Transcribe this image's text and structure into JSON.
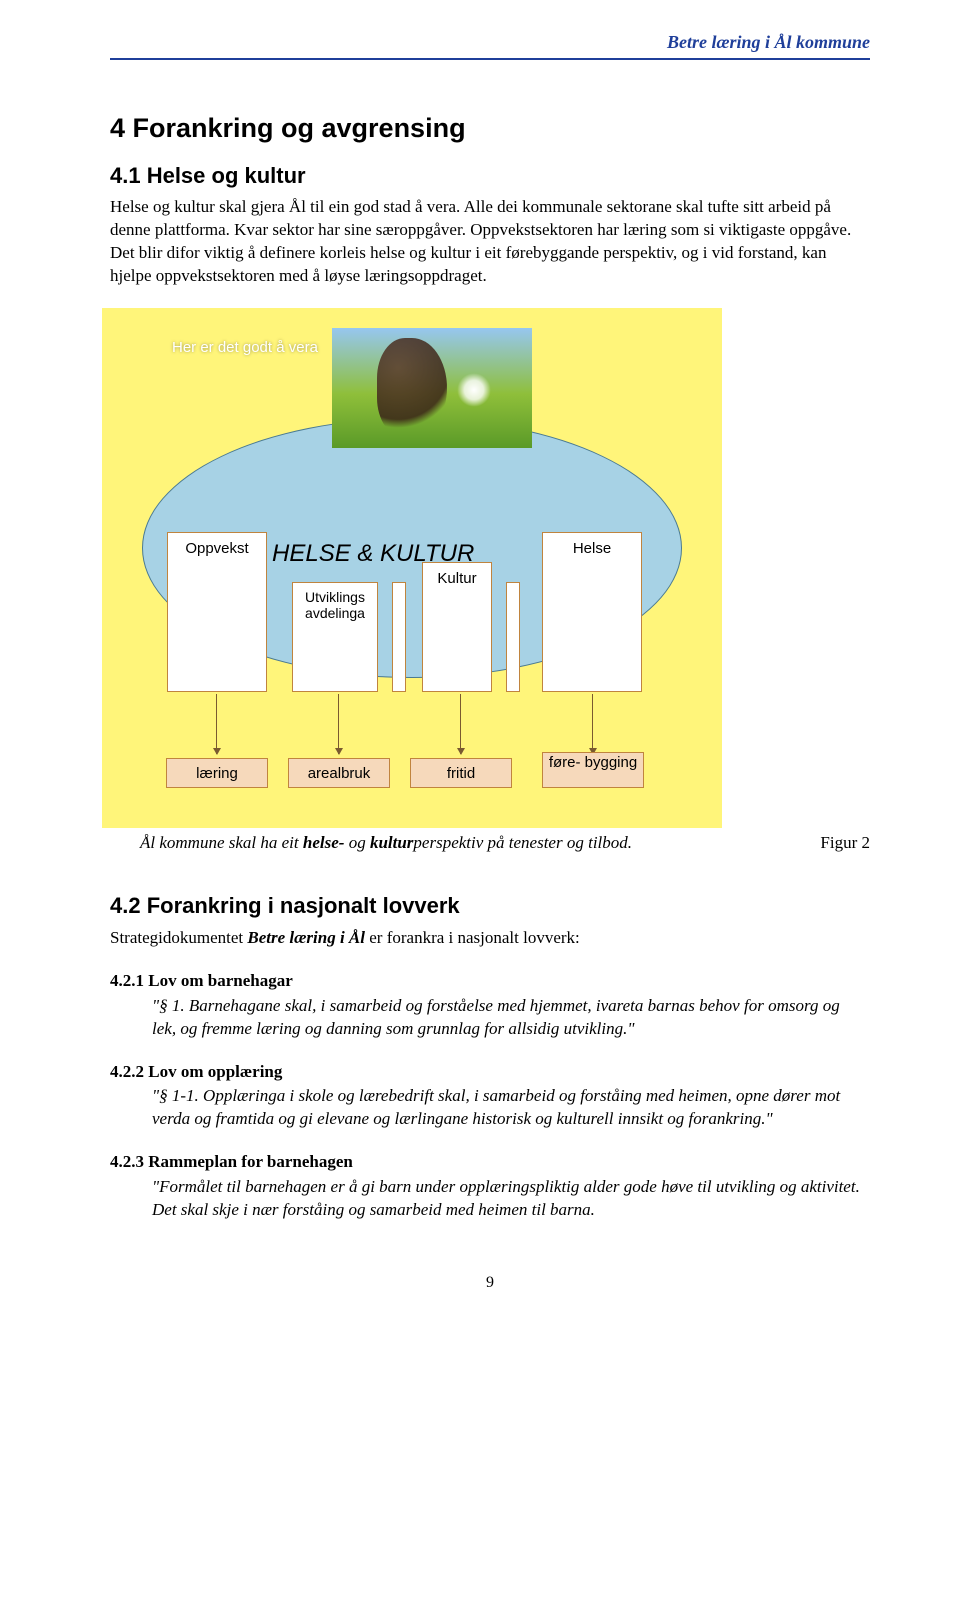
{
  "header": {
    "running_title": "Betre læring i Ål kommune"
  },
  "section": {
    "number_title": "4 Forankring og avgrensing"
  },
  "sub1": {
    "title": "4.1 Helse og kultur",
    "para": "Helse og kultur skal gjera Ål til ein god stad å vera. Alle dei kommunale sektorane skal tufte sitt arbeid på denne plattforma. Kvar sektor har sine særoppgåver. Oppvekstsektoren har læring som si viktigaste oppgåve. Det blir difor viktig å definere korleis helse og kultur i eit førebyggande perspektiv, og i vid forstand, kan hjelpe oppvekstsektoren med å løyse læringsoppdraget."
  },
  "figure": {
    "type": "infographic",
    "background_color": "#fff57a",
    "ellipse_fill": "#a7d2e5",
    "ellipse_border": "#4a7a92",
    "pillar_fill": "#ffffff",
    "pillar_border": "#c0843e",
    "bottom_fill": "#f6d9bb",
    "bottom_border": "#c0843e",
    "top_caption": "Her er det godt å vera",
    "main_label": "HELSE & KULTUR",
    "pillars": {
      "oppvekst": "Oppvekst",
      "utviklings": "Utviklings avdelinga",
      "kultur": "Kultur",
      "helse": "Helse"
    },
    "bottom_boxes": {
      "laering": "læring",
      "arealbruk": "arealbruk",
      "fritid": "fritid",
      "forebygging": "føre-\nbygging"
    },
    "caption_prefix": "Ål kommune skal ha eit ",
    "caption_bold1": "helse-",
    "caption_mid": " og ",
    "caption_bold2": "kultur",
    "caption_suffix": "perspektiv på tenester og tilbod.",
    "figure_label": "Figur 2"
  },
  "sub2": {
    "title": "4.2 Forankring i nasjonalt lovverk",
    "intro_pre": "Strategidokumentet ",
    "intro_bold": "Betre læring i Ål",
    "intro_post": " er forankra i nasjonalt lovverk:",
    "items": [
      {
        "head": "4.2.1 Lov om barnehagar",
        "body": "\"§ 1. Barnehagane skal, i samarbeid og forståelse med hjemmet, ivareta barnas behov for omsorg og lek, og fremme læring og danning som grunnlag for allsidig utvikling.\""
      },
      {
        "head": "4.2.2 Lov om opplæring",
        "body": "\"§ 1-1. Opplæringa i skole og lærebedrift skal, i samarbeid og forståing med heimen, opne dører mot verda og framtida og gi elevane og lærlingane historisk og kulturell innsikt og forankring.\""
      },
      {
        "head": "4.2.3 Rammeplan for barnehagen",
        "body": "\"Formålet til barnehagen er å gi barn under opplæringspliktig alder gode høve til utvikling og aktivitet. Det skal skje i nær forståing og samarbeid med heimen til barna."
      }
    ]
  },
  "page_number": "9"
}
